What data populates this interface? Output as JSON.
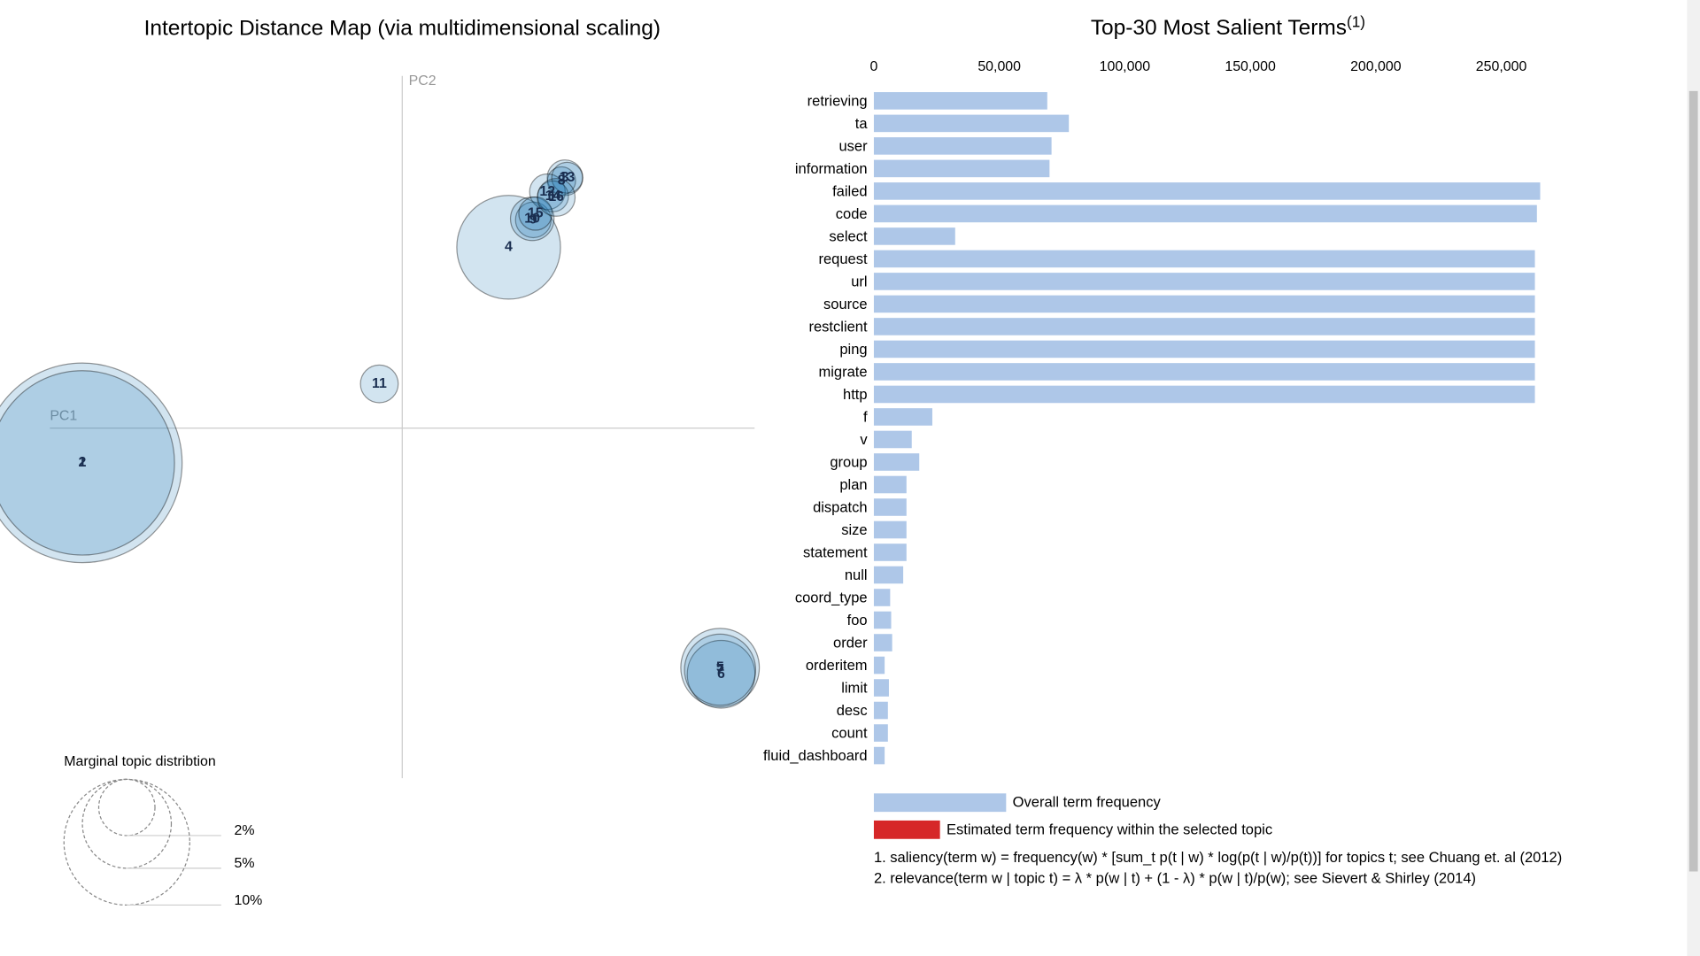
{
  "chart_data": [
    {
      "type": "bubble",
      "title": "Intertopic Distance Map (via multidimensional scaling)",
      "x_label": "PC1",
      "y_label": "PC2",
      "color": "#1f77b4",
      "xlim": [
        -1,
        1
      ],
      "ylim": [
        -1,
        1
      ],
      "labels": [
        "1",
        "2",
        "3",
        "4",
        "5",
        "6",
        "7",
        "8",
        "9",
        "10",
        "11",
        "12",
        "13",
        "14",
        "15",
        "16"
      ],
      "x": [
        -0.908,
        -0.908,
        0.462,
        0.302,
        0.902,
        0.905,
        0.902,
        0.452,
        0.372,
        0.369,
        -0.065,
        0.412,
        0.468,
        0.428,
        0.378,
        0.437
      ],
      "y": [
        -0.102,
        -0.102,
        0.71,
        0.512,
        -0.685,
        -0.704,
        -0.691,
        0.701,
        0.59,
        0.593,
        0.123,
        0.67,
        0.71,
        0.657,
        0.608,
        0.654
      ],
      "sizes": [
        25.2,
        21.5,
        0.8,
        6.8,
        3.9,
        2.9,
        3.2,
        0.5,
        0.8,
        1.2,
        0.9,
        0.8,
        0.6,
        0.6,
        0.7,
        0.9
      ],
      "size_legend_title": "Marginal topic distribtion",
      "size_legend": [
        {
          "value": 2,
          "label": "2%"
        },
        {
          "value": 5,
          "label": "5%"
        },
        {
          "value": 10,
          "label": "10%"
        }
      ]
    },
    {
      "type": "bar",
      "orientation": "horizontal",
      "title": "Top-30 Most Salient Terms",
      "title_note": "(1)",
      "categories": [
        "retrieving",
        "ta",
        "user",
        "information",
        "failed",
        "code",
        "select",
        "request",
        "url",
        "source",
        "restclient",
        "ping",
        "migrate",
        "http",
        "f",
        "v",
        "group",
        "plan",
        "dispatch",
        "size",
        "statement",
        "null",
        "coord_type",
        "foo",
        "order",
        "orderitem",
        "limit",
        "desc",
        "count",
        "fluid_dashboard"
      ],
      "series": [
        {
          "name": "Overall term frequency",
          "color": "#aec7e8",
          "values": [
            69100,
            77700,
            70800,
            70000,
            265500,
            264200,
            32400,
            263400,
            263400,
            263400,
            263400,
            263400,
            263400,
            263400,
            23300,
            15100,
            18100,
            13000,
            13000,
            13000,
            13000,
            11700,
            6500,
            6900,
            7300,
            4300,
            6000,
            5600,
            5600,
            4300
          ]
        },
        {
          "name": "Estimated term frequency within the selected topic",
          "color": "#d62728",
          "values": [
            null,
            null,
            null,
            null,
            null,
            null,
            null,
            null,
            null,
            null,
            null,
            null,
            null,
            null,
            null,
            null,
            null,
            null,
            null,
            null,
            null,
            null,
            null,
            null,
            null,
            null,
            null,
            null,
            null,
            null
          ]
        }
      ],
      "xlim": [
        0,
        270000
      ],
      "xticks": [
        0,
        {
          "value": 50000,
          "label": "50,000"
        },
        {
          "value": 100000,
          "label": "100,000"
        },
        {
          "value": 150000,
          "label": "150,000"
        },
        {
          "value": 200000,
          "label": "200,000"
        },
        {
          "value": 250000,
          "label": "250,000"
        }
      ],
      "notes": [
        "1. saliency(term w) = frequency(w) * [sum_t p(t | w) * log(p(t | w)/p(t))] for topics t; see Chuang et. al (2012)",
        "2. relevance(term w | topic t) = λ * p(w | t) + (1 - λ) * p(w | t)/p(w); see Sievert & Shirley (2014)"
      ]
    }
  ]
}
